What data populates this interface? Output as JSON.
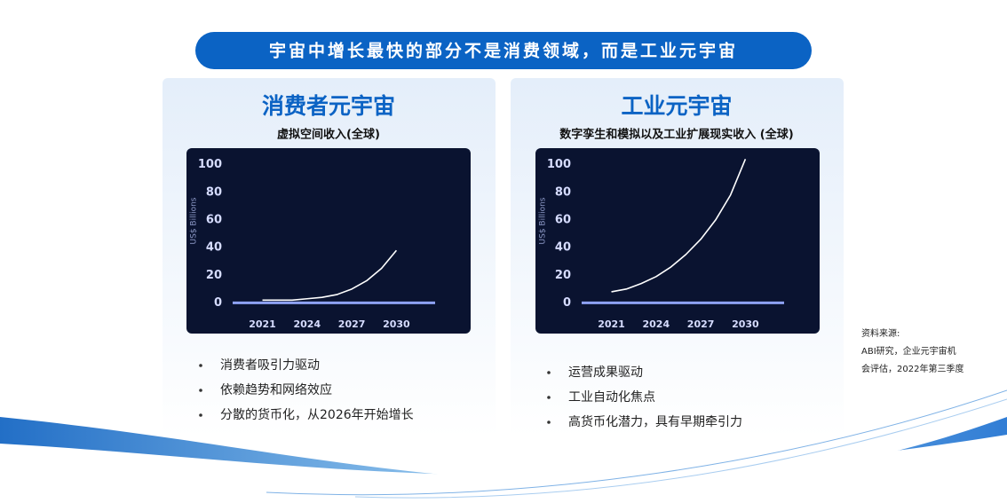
{
  "title": "宇宙中增长最快的部分不是消费领域，而是工业元宇宙",
  "chart_data": [
    {
      "type": "line",
      "title": "消费者元宇宙",
      "subtitle": "虚拟空间收入(全球)",
      "y_label": "US$ Billions",
      "x": [
        2021,
        2022,
        2023,
        2024,
        2025,
        2026,
        2027,
        2028,
        2029,
        2030
      ],
      "series": [
        {
          "color": "#ffffff",
          "values": [
            2,
            2,
            2,
            3,
            4,
            6,
            10,
            16,
            25,
            38
          ]
        }
      ],
      "xlim": [
        2019,
        2032.6
      ],
      "xticks": [
        2021,
        2024,
        2027,
        2030
      ],
      "ylim": [
        -10,
        110
      ],
      "yticks": [
        0,
        20,
        40,
        60,
        80,
        100
      ],
      "grid": false
    },
    {
      "type": "line",
      "title": "工业元宇宙",
      "subtitle": "数字孪生和模拟以及工业扩展现实收入 (全球)",
      "y_label": "US$ Billions",
      "x": [
        2021,
        2022,
        2023,
        2024,
        2025,
        2026,
        2027,
        2028,
        2029,
        2030
      ],
      "series": [
        {
          "color": "#ffffff",
          "values": [
            8,
            10,
            14,
            19,
            26,
            35,
            46,
            60,
            78,
            104
          ]
        }
      ],
      "xlim": [
        2019,
        2032.6
      ],
      "xticks": [
        2021,
        2024,
        2027,
        2030
      ],
      "ylim": [
        -10,
        110
      ],
      "yticks": [
        0,
        20,
        40,
        60,
        80,
        100
      ],
      "grid": false
    }
  ],
  "bullets": [
    [
      "消费者吸引力驱动",
      "依赖趋势和网络效应",
      "分散的货币化，从2026年开始增长"
    ],
    [
      "运营成果驱动",
      "工业自动化焦点",
      "高货币化潜力，具有早期牵引力"
    ]
  ],
  "source": [
    "资料来源:",
    "ABI研究，企业元宇宙机",
    "会评估，2022年第三季度"
  ]
}
